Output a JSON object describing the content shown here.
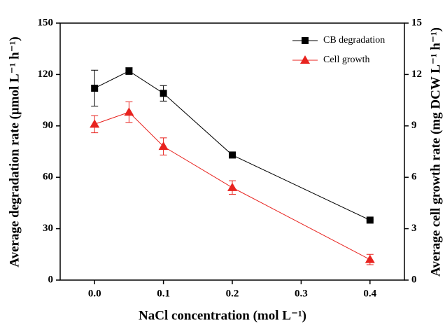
{
  "chart_data": {
    "type": "line",
    "x_label": "NaCl concentration (mol L⁻¹)",
    "y_label": "Average degradation rate (μmol L⁻¹ h⁻¹)",
    "y2_label": "Average cell growth rate (mg DCW L⁻¹ h⁻¹)",
    "x": [
      0,
      0.05,
      0.1,
      0.2,
      0.4
    ],
    "series": [
      {
        "name": "CB degradation",
        "color": "#000000",
        "marker": "square",
        "values": [
          112,
          122,
          109,
          73,
          35
        ],
        "errors": [
          10.5,
          2,
          4.5,
          1,
          0.5
        ]
      },
      {
        "name": "Cell growth",
        "color": "#e8231f",
        "marker": "triangle",
        "axis": "y2",
        "values": [
          9.1,
          9.8,
          7.8,
          5.4,
          1.2
        ],
        "errors": [
          0.5,
          0.6,
          0.5,
          0.4,
          0.3
        ]
      }
    ],
    "xlim": [
      -0.05,
      0.45
    ],
    "xticks": [
      {
        "value": 0,
        "label": "0.0"
      },
      0.1,
      0.2,
      0.3,
      0.4
    ],
    "ylim": [
      0,
      150
    ],
    "yticks": [
      0,
      30,
      60,
      90,
      120,
      150
    ],
    "y2lim": [
      0,
      15
    ],
    "y2ticks": [
      0,
      3,
      6,
      9,
      12,
      15
    ],
    "legend": "top-right"
  }
}
